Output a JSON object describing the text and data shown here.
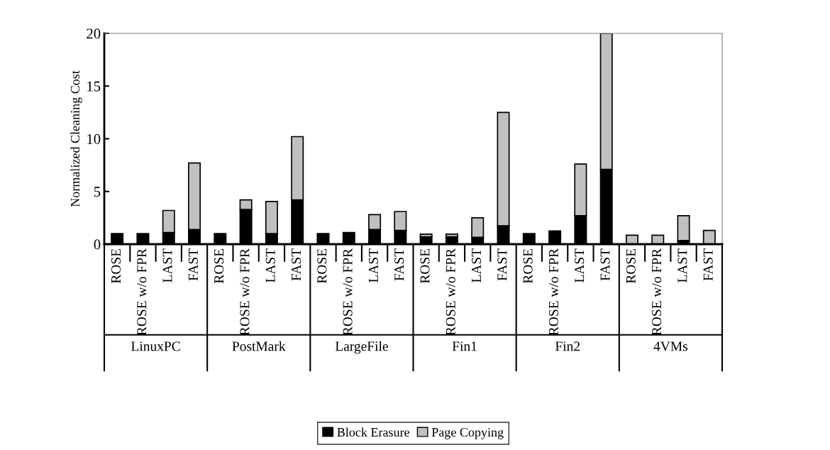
{
  "chart_data": {
    "type": "bar",
    "stacked": true,
    "ylabel": "Normalized Cleaning Cost",
    "categories": [
      "ROSE",
      "ROSE w/o FPR",
      "LAST",
      "FAST",
      "ROSE",
      "ROSE w/o FPR",
      "LAST",
      "FAST",
      "ROSE",
      "ROSE w/o FPR",
      "LAST",
      "FAST",
      "ROSE",
      "ROSE w/o FPR",
      "LAST",
      "FAST",
      "ROSE",
      "ROSE w/o FPR",
      "LAST",
      "FAST",
      "ROSE",
      "ROSE w/o FPR",
      "LAST",
      "FAST"
    ],
    "annotations": [
      "LinuxPC",
      "PostMark",
      "LargeFile",
      "Fin1",
      "Fin2",
      "4VMs"
    ],
    "series": [
      {
        "name": "Block Erasure",
        "color": "#000000",
        "values": [
          1,
          1,
          1.1,
          1.4,
          1,
          3.3,
          1,
          4.2,
          1,
          1.1,
          1.4,
          1.3,
          0.7,
          0.7,
          0.65,
          1.75,
          1,
          1.25,
          2.7,
          7.1,
          null,
          null,
          0.35,
          null
        ]
      },
      {
        "name": "Page Copying",
        "color": "#c0c0c0",
        "values": [
          null,
          null,
          2.1,
          6.3,
          null,
          0.9,
          3.05,
          6,
          null,
          null,
          1.4,
          1.8,
          0.25,
          0.25,
          1.85,
          10.75,
          null,
          null,
          4.9,
          12.9,
          0.85,
          0.85,
          2.35,
          1.3
        ]
      }
    ],
    "ylim": [
      0,
      20
    ],
    "yticks": [
      0,
      5,
      10,
      15,
      20
    ],
    "grid": false,
    "legend": "bottom"
  }
}
